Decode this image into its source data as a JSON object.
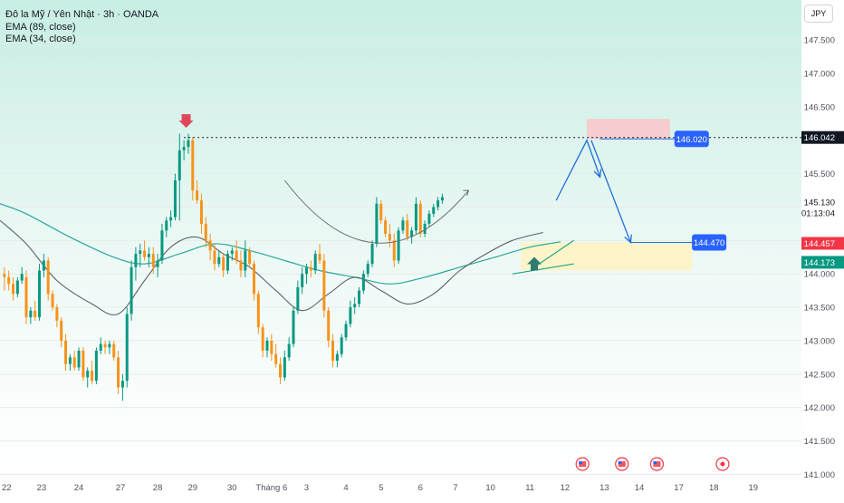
{
  "legend": {
    "symbol_line": "Đô la Mỹ / Yên Nhật · 3h · OANDA",
    "ema_slow": "EMA (89, close)",
    "ema_fast": "EMA (34, close)"
  },
  "currency_button": "JPY",
  "colors": {
    "up": "#089981",
    "down": "#F7931A",
    "ema_slow": "#2aa79b",
    "ema_fast": "#5d606b",
    "accent_blue": "#2962FF",
    "resistance_zone": "#f8c9cc",
    "support_zone": "#fff3c4",
    "sell_arrow": "#e0485a",
    "buy_arrow": "#2e7d6f"
  },
  "chart_data": {
    "type": "candlestick",
    "symbol": "Đô la Mỹ / Yên Nhật · 3h · OANDA",
    "price_ticks": [
      "147.500",
      "147.000",
      "146.500",
      "146.000",
      "145.500",
      "145.000",
      "144.500",
      "144.000",
      "143.500",
      "143.000",
      "142.500",
      "142.000",
      "141.500",
      "141.000"
    ],
    "price_tick_values": [
      147.5,
      147.0,
      146.5,
      146.0,
      145.5,
      145.0,
      144.5,
      144.0,
      143.5,
      143.0,
      142.5,
      142.0,
      141.5,
      141.0
    ],
    "ylim": [
      140.95,
      148.1
    ],
    "date_labels": [
      "22",
      "23",
      "24",
      "27",
      "28",
      "29",
      "30",
      "Tháng 6",
      "3",
      "4",
      "5",
      "6",
      "7",
      "10",
      "11",
      "12",
      "13",
      "14",
      "17",
      "18",
      "19"
    ],
    "date_label_index": [
      0.5,
      8.5,
      17,
      26.5,
      35,
      43,
      52,
      61,
      69,
      78,
      86,
      95,
      103,
      111,
      120,
      128,
      137,
      145,
      154,
      162,
      171
    ],
    "index_range": [
      -1,
      182
    ],
    "candles": [
      [
        144.0,
        144.1,
        143.75,
        143.95
      ],
      [
        143.95,
        144.05,
        143.75,
        143.85
      ],
      [
        143.85,
        143.95,
        143.6,
        143.7
      ],
      [
        143.7,
        143.95,
        143.65,
        143.9
      ],
      [
        143.9,
        144.1,
        143.85,
        144.0
      ],
      [
        143.95,
        144.05,
        143.25,
        143.35
      ],
      [
        143.35,
        143.5,
        143.25,
        143.45
      ],
      [
        143.45,
        143.6,
        143.3,
        143.35
      ],
      [
        143.35,
        144.15,
        143.3,
        144.05
      ],
      [
        144.05,
        144.3,
        143.95,
        144.2
      ],
      [
        144.2,
        144.25,
        143.6,
        143.7
      ],
      [
        143.7,
        143.75,
        143.45,
        143.5
      ],
      [
        143.5,
        143.55,
        143.2,
        143.3
      ],
      [
        143.3,
        143.35,
        142.9,
        143.0
      ],
      [
        143.0,
        143.1,
        142.55,
        142.65
      ],
      [
        142.65,
        142.8,
        142.55,
        142.75
      ],
      [
        142.75,
        142.85,
        142.55,
        142.6
      ],
      [
        142.6,
        142.9,
        142.55,
        142.85
      ],
      [
        142.85,
        142.9,
        142.4,
        142.45
      ],
      [
        142.45,
        142.6,
        142.3,
        142.55
      ],
      [
        142.55,
        142.7,
        142.35,
        142.4
      ],
      [
        142.4,
        142.9,
        142.35,
        142.85
      ],
      [
        142.85,
        143.05,
        142.8,
        142.95
      ],
      [
        142.95,
        143.0,
        142.8,
        142.9
      ],
      [
        142.9,
        143.0,
        142.8,
        142.95
      ],
      [
        142.95,
        143.0,
        142.7,
        142.75
      ],
      [
        142.75,
        142.85,
        142.2,
        142.3
      ],
      [
        142.3,
        142.5,
        142.1,
        142.4
      ],
      [
        142.4,
        143.5,
        142.3,
        143.4
      ],
      [
        143.4,
        144.2,
        143.3,
        144.1
      ],
      [
        144.1,
        144.4,
        143.9,
        144.3
      ],
      [
        144.3,
        144.45,
        144.1,
        144.35
      ],
      [
        144.35,
        144.5,
        144.2,
        144.25
      ],
      [
        144.25,
        144.4,
        144.1,
        144.3
      ],
      [
        144.3,
        144.4,
        144.0,
        144.1
      ],
      [
        144.1,
        144.3,
        143.95,
        144.2
      ],
      [
        144.2,
        144.75,
        144.15,
        144.65
      ],
      [
        144.65,
        144.85,
        144.55,
        144.8
      ],
      [
        144.8,
        144.95,
        144.7,
        144.85
      ],
      [
        144.85,
        145.5,
        144.8,
        145.4
      ],
      [
        145.4,
        146.1,
        144.8,
        145.85
      ],
      [
        145.85,
        146.0,
        145.7,
        145.9
      ],
      [
        145.9,
        146.1,
        145.8,
        146.0
      ],
      [
        146.0,
        146.05,
        145.1,
        145.25
      ],
      [
        145.25,
        145.4,
        145.05,
        145.1
      ],
      [
        145.1,
        145.2,
        144.6,
        144.75
      ],
      [
        144.75,
        144.85,
        144.4,
        144.5
      ],
      [
        144.5,
        144.6,
        144.2,
        144.35
      ],
      [
        144.35,
        144.45,
        144.05,
        144.15
      ],
      [
        144.15,
        144.35,
        144.1,
        144.25
      ],
      [
        144.25,
        144.3,
        143.95,
        144.05
      ],
      [
        144.05,
        144.35,
        144.0,
        144.3
      ],
      [
        144.3,
        144.4,
        144.2,
        144.35
      ],
      [
        144.35,
        144.5,
        144.15,
        144.2
      ],
      [
        144.2,
        144.35,
        143.95,
        144.05
      ],
      [
        144.05,
        144.5,
        143.95,
        144.35
      ],
      [
        144.35,
        144.4,
        144.1,
        144.15
      ],
      [
        144.15,
        144.2,
        143.6,
        143.7
      ],
      [
        143.7,
        143.75,
        143.1,
        143.2
      ],
      [
        143.2,
        143.25,
        142.75,
        142.85
      ],
      [
        142.85,
        143.05,
        142.75,
        143.0
      ],
      [
        143.0,
        143.1,
        142.7,
        142.8
      ],
      [
        142.8,
        142.95,
        142.6,
        142.65
      ],
      [
        142.65,
        142.75,
        142.35,
        142.45
      ],
      [
        142.45,
        142.85,
        142.4,
        142.75
      ],
      [
        142.75,
        143.05,
        142.7,
        142.95
      ],
      [
        142.95,
        143.5,
        142.9,
        143.45
      ],
      [
        143.45,
        143.9,
        143.4,
        143.8
      ],
      [
        143.8,
        144.1,
        143.7,
        144.0
      ],
      [
        144.0,
        144.15,
        143.85,
        144.1
      ],
      [
        144.1,
        144.2,
        143.95,
        144.05
      ],
      [
        144.05,
        144.35,
        144.0,
        144.3
      ],
      [
        144.3,
        144.45,
        144.15,
        144.2
      ],
      [
        144.2,
        144.3,
        143.35,
        143.45
      ],
      [
        143.45,
        143.5,
        142.9,
        143.0
      ],
      [
        143.0,
        143.1,
        142.6,
        142.7
      ],
      [
        142.7,
        142.85,
        142.6,
        142.8
      ],
      [
        142.8,
        143.1,
        142.75,
        143.05
      ],
      [
        143.05,
        143.3,
        143.0,
        143.25
      ],
      [
        143.25,
        143.6,
        143.2,
        143.5
      ],
      [
        143.5,
        143.65,
        143.4,
        143.55
      ],
      [
        143.55,
        143.8,
        143.5,
        143.75
      ],
      [
        143.75,
        144.05,
        143.7,
        144.0
      ],
      [
        144.0,
        144.2,
        143.95,
        144.15
      ],
      [
        144.15,
        144.5,
        144.1,
        144.45
      ],
      [
        144.45,
        145.15,
        144.4,
        145.05
      ],
      [
        145.05,
        145.1,
        144.75,
        144.8
      ],
      [
        144.8,
        144.85,
        144.55,
        144.6
      ],
      [
        144.6,
        144.75,
        144.4,
        144.5
      ],
      [
        144.5,
        144.6,
        144.1,
        144.2
      ],
      [
        144.2,
        144.7,
        144.15,
        144.65
      ],
      [
        144.65,
        144.85,
        144.6,
        144.8
      ],
      [
        144.8,
        144.9,
        144.5,
        144.55
      ],
      [
        144.55,
        144.7,
        144.45,
        144.65
      ],
      [
        144.65,
        145.15,
        144.6,
        145.05
      ],
      [
        145.05,
        145.1,
        144.55,
        144.6
      ],
      [
        144.6,
        144.8,
        144.55,
        144.75
      ],
      [
        144.75,
        144.95,
        144.7,
        144.9
      ],
      [
        144.9,
        145.05,
        144.85,
        145.0
      ],
      [
        145.0,
        145.15,
        144.95,
        145.1
      ],
      [
        145.1,
        145.2,
        145.05,
        145.15
      ]
    ],
    "candle_x_start_index": 0,
    "ema_89": [
      [
        -1,
        145.05
      ],
      [
        5,
        144.9
      ],
      [
        15,
        144.55
      ],
      [
        25,
        144.25
      ],
      [
        32,
        144.15
      ],
      [
        40,
        144.3
      ],
      [
        48,
        144.45
      ],
      [
        56,
        144.35
      ],
      [
        64,
        144.2
      ],
      [
        72,
        144.05
      ],
      [
        80,
        143.95
      ],
      [
        88,
        143.85
      ],
      [
        96,
        143.95
      ],
      [
        104,
        144.1
      ],
      [
        112,
        144.25
      ],
      [
        120,
        144.4
      ],
      [
        127,
        144.48
      ]
    ],
    "ema_34": [
      [
        -1,
        144.8
      ],
      [
        5,
        144.45
      ],
      [
        12,
        143.9
      ],
      [
        20,
        143.55
      ],
      [
        26,
        143.4
      ],
      [
        32,
        143.9
      ],
      [
        38,
        144.4
      ],
      [
        44,
        144.55
      ],
      [
        50,
        144.3
      ],
      [
        56,
        144.1
      ],
      [
        62,
        143.75
      ],
      [
        68,
        143.45
      ],
      [
        74,
        143.7
      ],
      [
        80,
        143.95
      ],
      [
        86,
        143.75
      ],
      [
        92,
        143.55
      ],
      [
        98,
        143.7
      ],
      [
        104,
        144.05
      ],
      [
        110,
        144.3
      ],
      [
        116,
        144.5
      ],
      [
        123,
        144.62
      ]
    ],
    "annotations": {
      "resistance_line_price": 146.042,
      "target_high_label": "146.020",
      "target_high_price": 146.02,
      "target_low_label": "144.470",
      "target_low_price": 144.47,
      "current_price_label": "145.130",
      "countdown_label": "01:13:04",
      "red_price_tag": "144.457",
      "green_price_tag": "144.173",
      "resistance_tag": "146.042",
      "resistance_zone": {
        "x_from_index": 133,
        "x_to_index": 152,
        "price_top": 146.32,
        "price_bottom": 146.02
      },
      "support_zone": {
        "x_from_index": 118,
        "x_to_index": 157,
        "price_top": 144.47,
        "price_bottom": 144.05
      },
      "curve_arc": {
        "from_index": 64,
        "via_index": 85,
        "to_index": 106,
        "price_start": 145.4,
        "price_mid": 144.55,
        "price_end": 145.25
      },
      "projection_path": [
        [
          126,
          145.1
        ],
        [
          133,
          146.0
        ],
        [
          136,
          145.45
        ],
        [
          134,
          146.0
        ],
        [
          143,
          144.47
        ]
      ],
      "trend_line": [
        [
          121,
          144.1
        ],
        [
          130,
          144.5
        ]
      ],
      "trend_line_2": [
        [
          116,
          144.0
        ],
        [
          130,
          144.15
        ]
      ],
      "event_markers_index": [
        132,
        141,
        149,
        164
      ]
    }
  }
}
